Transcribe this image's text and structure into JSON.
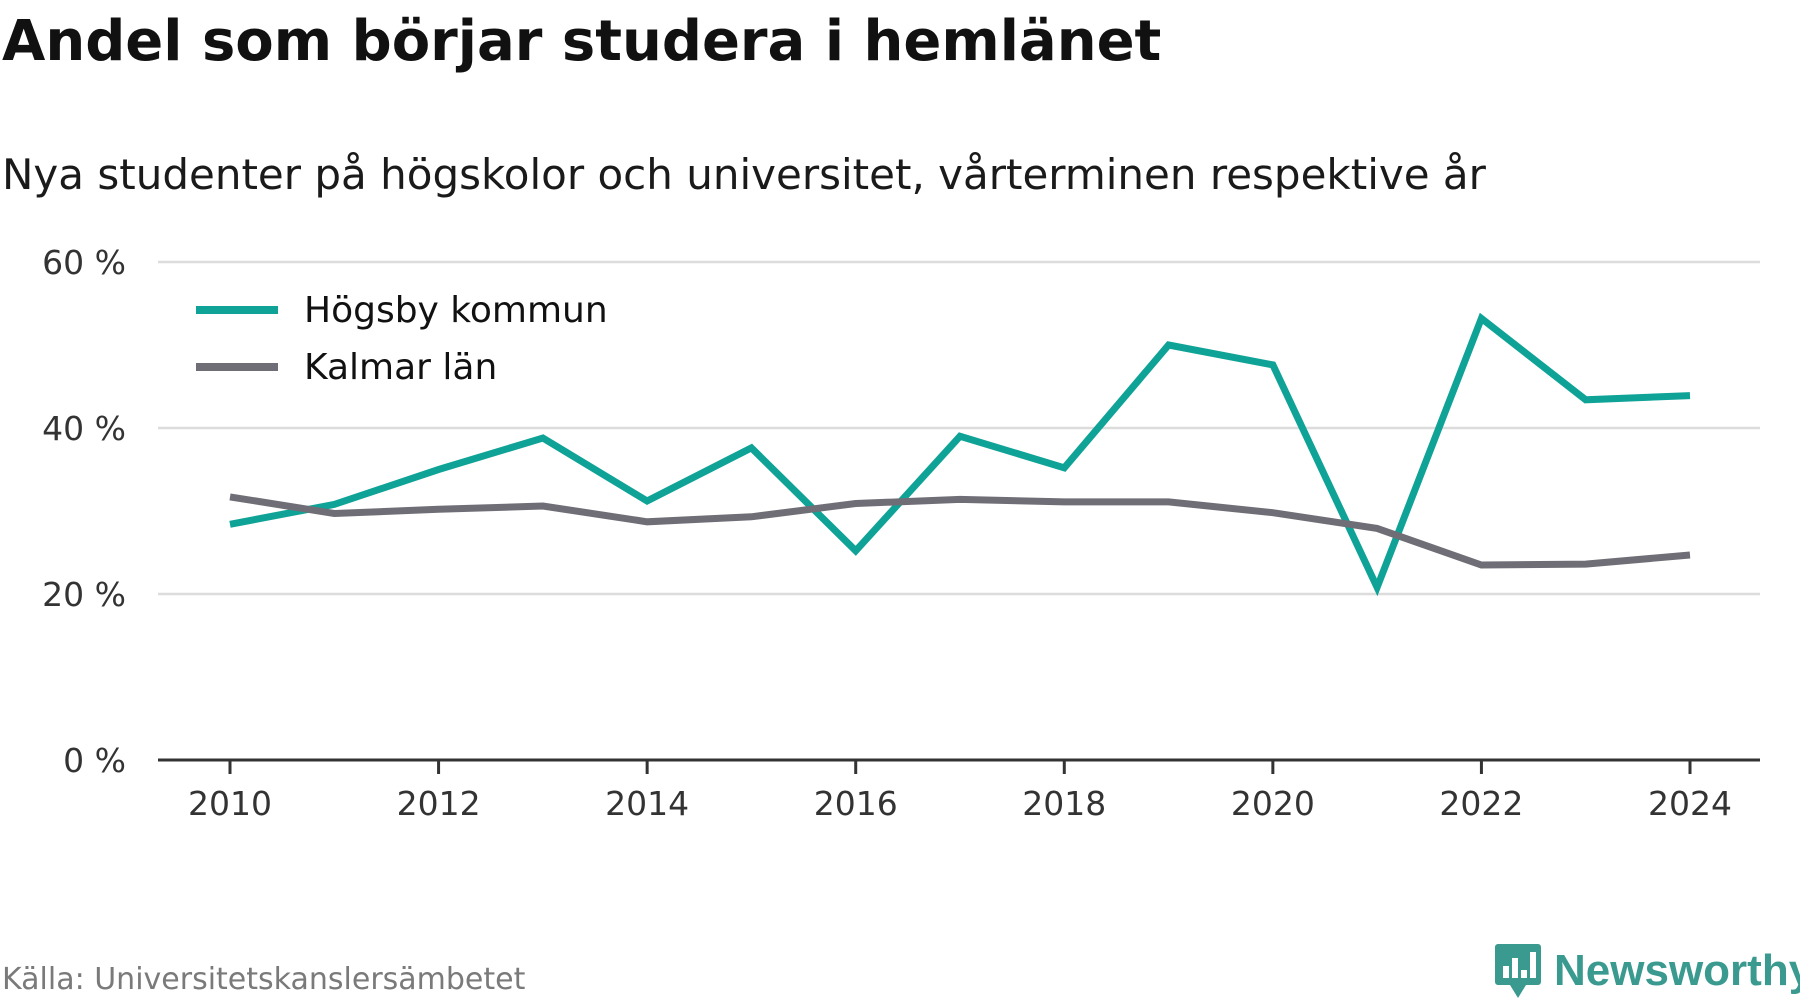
{
  "title": "Andel som börjar studera i hemlänet",
  "subtitle": "Nya studenter på högskolor och universitet, vårterminen respektive år",
  "source": "Källa: Universitetskanslersämbetet",
  "brand": {
    "name": "Newsworthy",
    "icon": "newsworthy-logo-icon",
    "color": "#3a9a8f"
  },
  "chart_data": {
    "type": "line",
    "x": [
      2010,
      2011,
      2012,
      2013,
      2014,
      2015,
      2016,
      2017,
      2018,
      2019,
      2020,
      2021,
      2022,
      2023,
      2024
    ],
    "series": [
      {
        "name": "Högsby kommun",
        "color": "#0fa397",
        "values": [
          28.4,
          30.8,
          35.0,
          38.8,
          31.2,
          37.6,
          25.2,
          39.0,
          35.2,
          50.0,
          47.6,
          20.8,
          53.2,
          43.4,
          43.9
        ]
      },
      {
        "name": "Kalmar län",
        "color": "#6f6e76",
        "values": [
          31.7,
          29.7,
          30.2,
          30.6,
          28.7,
          29.3,
          30.9,
          31.4,
          31.1,
          31.1,
          29.8,
          27.9,
          23.5,
          23.6,
          24.7
        ]
      }
    ],
    "xticks": [
      "2010",
      "2012",
      "2014",
      "2016",
      "2018",
      "2020",
      "2022",
      "2024"
    ],
    "yticks": [
      "0 %",
      "20 %",
      "40 %",
      "60 %"
    ],
    "ylim": [
      0,
      60
    ],
    "xlim": [
      2010,
      2024
    ],
    "xlabel": "",
    "ylabel": "",
    "grid": "horizontal",
    "legend_position": "top-left"
  }
}
